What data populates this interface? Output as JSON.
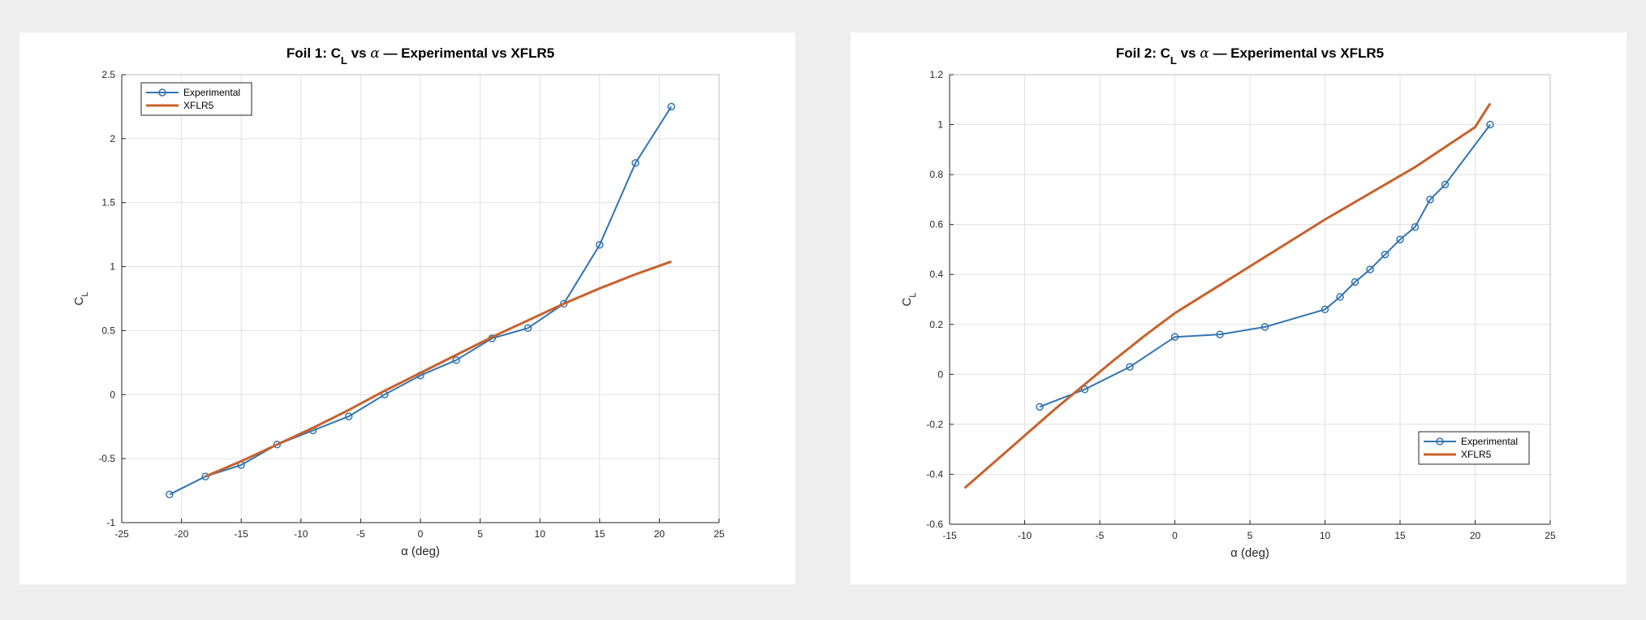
{
  "colors": {
    "experimental": "#3274B0",
    "xflr5": "#C8612C",
    "grid": "#e1e1e1",
    "axis": "#262626"
  },
  "chart_data": [
    {
      "type": "line",
      "title": {
        "prefix": "Foil 1: C",
        "sub": "L",
        "mid": " vs ",
        "alpha": "α",
        "suffix": "  —  Experimental vs XFLR5"
      },
      "xlabel": "α (deg)",
      "ylabel": {
        "main": "C",
        "sub": "L"
      },
      "xlim": [
        -25,
        25
      ],
      "ylim": [
        -1,
        2.5
      ],
      "xticks": [
        -25,
        -20,
        -15,
        -10,
        -5,
        0,
        5,
        10,
        15,
        20,
        25
      ],
      "yticks": [
        -1,
        -0.5,
        0,
        0.5,
        1,
        1.5,
        2,
        2.5
      ],
      "grid": true,
      "legend_position": "top-left",
      "series": [
        {
          "name": "Experimental",
          "marker": "circle",
          "x": [
            -21,
            -18,
            -15,
            -12,
            -9,
            -6,
            -3,
            0,
            3,
            6,
            9,
            12,
            15,
            18,
            21
          ],
          "y": [
            -0.78,
            -0.64,
            -0.55,
            -0.39,
            -0.28,
            -0.17,
            0.0,
            0.15,
            0.27,
            0.44,
            0.52,
            0.71,
            1.17,
            1.81,
            2.25
          ]
        },
        {
          "name": "XFLR5",
          "marker": "none",
          "x": [
            -18,
            -15,
            -12,
            -9,
            -6,
            -3,
            0,
            3,
            6,
            9,
            12,
            15,
            18,
            21
          ],
          "y": [
            -0.64,
            -0.52,
            -0.39,
            -0.26,
            -0.12,
            0.03,
            0.17,
            0.31,
            0.45,
            0.58,
            0.71,
            0.83,
            0.94,
            1.04
          ]
        }
      ]
    },
    {
      "type": "line",
      "title": {
        "prefix": "Foil 2: C",
        "sub": "L",
        "mid": " vs ",
        "alpha": "α",
        "suffix": "  —  Experimental vs XFLR5"
      },
      "xlabel": "α (deg)",
      "ylabel": {
        "main": "C",
        "sub": "L"
      },
      "xlim": [
        -15,
        25
      ],
      "ylim": [
        -0.6,
        1.2
      ],
      "xticks": [
        -15,
        -10,
        -5,
        0,
        5,
        10,
        15,
        20,
        25
      ],
      "yticks": [
        -0.6,
        -0.4,
        -0.2,
        0,
        0.2,
        0.4,
        0.6,
        0.8,
        1,
        1.2
      ],
      "grid": true,
      "legend_position": "bottom-right",
      "series": [
        {
          "name": "Experimental",
          "marker": "circle",
          "x": [
            -9,
            -6,
            -3,
            0,
            3,
            6,
            10,
            11,
            12,
            13,
            14,
            15,
            16,
            17,
            18,
            21
          ],
          "y": [
            -0.13,
            -0.06,
            0.03,
            0.15,
            0.16,
            0.19,
            0.26,
            0.31,
            0.37,
            0.42,
            0.48,
            0.54,
            0.59,
            0.7,
            0.76,
            1.0
          ]
        },
        {
          "name": "XFLR5",
          "marker": "none",
          "x": [
            -14,
            -12,
            -10,
            -8,
            -6,
            -4,
            -2,
            0,
            2,
            4,
            6,
            8,
            10,
            12,
            14,
            16,
            18,
            20,
            21
          ],
          "y": [
            -0.455,
            -0.35,
            -0.245,
            -0.14,
            -0.04,
            0.06,
            0.155,
            0.245,
            0.32,
            0.395,
            0.47,
            0.545,
            0.62,
            0.69,
            0.76,
            0.83,
            0.91,
            0.99,
            1.085
          ]
        }
      ]
    }
  ]
}
